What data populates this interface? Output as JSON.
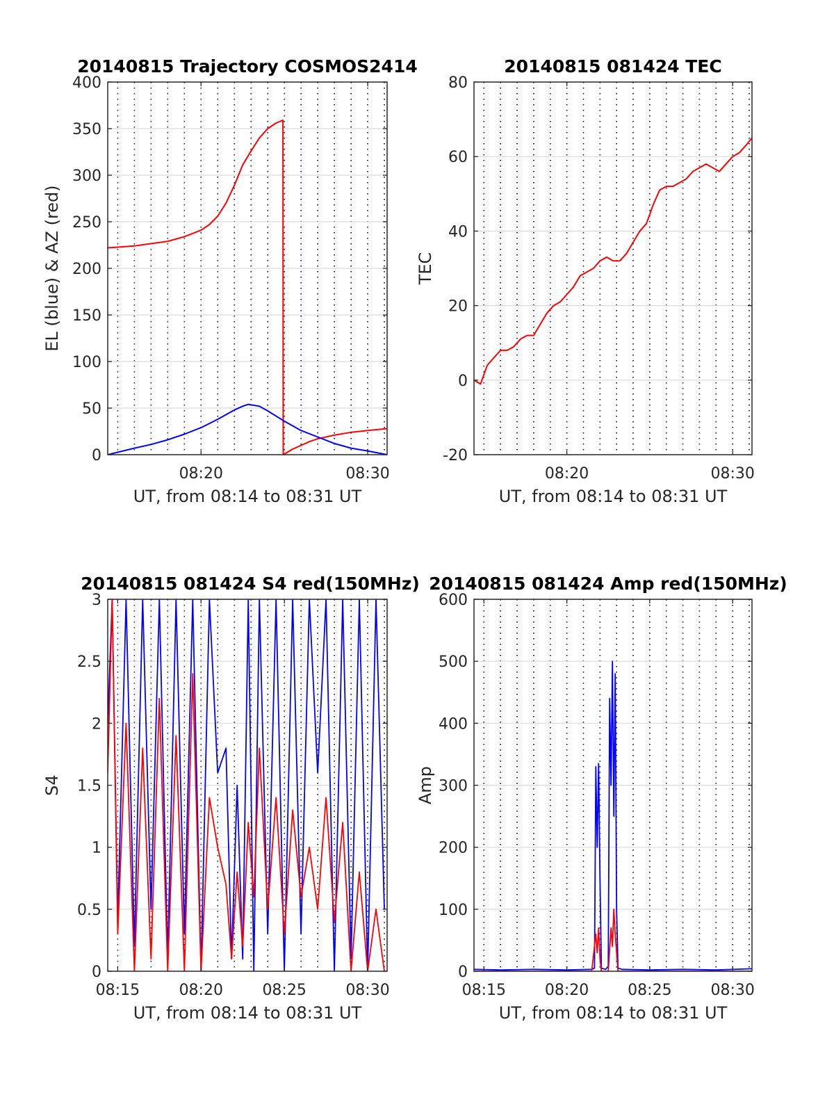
{
  "charts": [
    {
      "id": "trajectory",
      "title": "20140815 Trajectory COSMOS2414",
      "ylabel": "EL (blue) & AZ (red)",
      "xlabel": "UT, from 08:14 to 08:31 UT",
      "ylim": [
        0,
        400
      ],
      "yticks": [
        "0",
        "50",
        "100",
        "150",
        "200",
        "250",
        "300",
        "350",
        "400"
      ],
      "xticks": [
        "08:20",
        "08:30"
      ]
    },
    {
      "id": "tec",
      "title": "20140815 081424 TEC",
      "ylabel": "TEC",
      "xlabel": "UT, from 08:14 to 08:31 UT",
      "ylim": [
        -20,
        80
      ],
      "yticks": [
        "-20",
        "0",
        "20",
        "40",
        "60",
        "80"
      ],
      "xticks": [
        "08:20",
        "08:30"
      ]
    },
    {
      "id": "s4",
      "title": "20140815 081424 S4 red(150MHz)",
      "ylabel": "S4",
      "xlabel": "UT, from 08:14 to 08:31 UT",
      "ylim": [
        0,
        3
      ],
      "yticks": [
        "0",
        "0.5",
        "1",
        "1.5",
        "2",
        "2.5",
        "3"
      ],
      "xticks": [
        "08:15",
        "08:20",
        "08:25",
        "08:30"
      ]
    },
    {
      "id": "amp",
      "title": "20140815 081424 Amp red(150MHz)",
      "ylabel": "Amp",
      "xlabel": "UT, from 08:14 to 08:31 UT",
      "ylim": [
        0,
        600
      ],
      "yticks": [
        "0",
        "100",
        "200",
        "300",
        "400",
        "500",
        "600"
      ],
      "xticks": [
        "08:15",
        "08:20",
        "08:25",
        "08:30"
      ]
    }
  ],
  "chart_data": [
    {
      "type": "line",
      "title": "20140815 Trajectory COSMOS2414",
      "xlabel": "UT, from 08:14 to 08:31 UT",
      "ylabel": "EL (blue) & AZ (red)",
      "xlim": [
        "08:14:24",
        "08:31:10"
      ],
      "ylim": [
        0,
        400
      ],
      "grid": true,
      "series": [
        {
          "color": "#ff0000",
          "x": [
            "08:14:24",
            "08:16:00",
            "08:18:00",
            "08:19:00",
            "08:20:00",
            "08:20:30",
            "08:21:00",
            "08:21:30",
            "08:22:00",
            "08:22:30",
            "08:23:00",
            "08:23:30",
            "08:24:00",
            "08:24:30",
            "08:24:55",
            "08:24:56",
            "08:25:30",
            "08:26:00",
            "08:26:30",
            "08:27:00",
            "08:28:00",
            "08:29:00",
            "08:30:00",
            "08:31:10"
          ],
          "values": [
            222,
            224,
            229,
            234,
            241,
            247,
            256,
            270,
            289,
            311,
            326,
            340,
            350,
            356,
            359,
            0,
            6,
            10,
            14,
            17,
            21,
            24,
            26,
            28
          ]
        },
        {
          "color": "#0000ff",
          "x": [
            "08:14:24",
            "08:16:00",
            "08:17:00",
            "08:18:00",
            "08:19:00",
            "08:20:00",
            "08:21:00",
            "08:22:00",
            "08:22:30",
            "08:22:50",
            "08:23:30",
            "08:24:00",
            "08:25:00",
            "08:26:00",
            "08:27:00",
            "08:28:00",
            "08:29:00",
            "08:30:00",
            "08:31:10"
          ],
          "values": [
            0,
            7,
            11,
            16,
            22,
            29,
            38,
            48,
            52,
            54,
            52,
            47,
            36,
            26,
            19,
            12,
            7,
            4,
            0
          ]
        }
      ]
    },
    {
      "type": "line",
      "title": "20140815 081424 TEC",
      "xlabel": "UT, from 08:14 to 08:31 UT",
      "ylabel": "TEC",
      "xlim": [
        "08:14:24",
        "08:31:10"
      ],
      "ylim": [
        -20,
        80
      ],
      "grid": true,
      "series": [
        {
          "color": "#ff0000",
          "x": [
            "08:14:24",
            "08:14:48",
            "08:15:12",
            "08:15:36",
            "08:16:00",
            "08:16:24",
            "08:16:48",
            "08:17:12",
            "08:17:36",
            "08:18:00",
            "08:18:24",
            "08:18:48",
            "08:19:12",
            "08:19:36",
            "08:20:00",
            "08:20:24",
            "08:20:48",
            "08:21:12",
            "08:21:36",
            "08:22:00",
            "08:22:24",
            "08:22:48",
            "08:23:12",
            "08:23:36",
            "08:24:00",
            "08:24:24",
            "08:24:48",
            "08:25:12",
            "08:25:36",
            "08:26:00",
            "08:26:24",
            "08:26:48",
            "08:27:12",
            "08:27:36",
            "08:28:00",
            "08:28:24",
            "08:28:48",
            "08:29:12",
            "08:29:36",
            "08:30:00",
            "08:30:24",
            "08:30:48",
            "08:31:10"
          ],
          "values": [
            0,
            -1,
            4,
            6,
            8,
            8,
            9,
            11,
            12,
            12,
            15,
            18,
            20,
            21,
            23,
            25,
            28,
            29,
            30,
            32,
            33,
            32,
            32,
            34,
            37,
            40,
            42,
            47,
            51,
            52,
            52,
            53,
            54,
            56,
            57,
            58,
            57,
            56,
            58,
            60,
            61,
            63,
            65
          ]
        }
      ]
    },
    {
      "type": "line",
      "title": "20140815 081424 S4 red(150MHz)",
      "xlabel": "UT, from 08:14 to 08:31 UT",
      "ylabel": "S4",
      "xlim": [
        "08:14:24",
        "08:31:10"
      ],
      "ylim": [
        0,
        3
      ],
      "grid": true,
      "series": [
        {
          "color": "#0000ff",
          "x": [
            "08:14:24",
            "08:14:40",
            "08:15:00",
            "08:15:30",
            "08:16:00",
            "08:16:30",
            "08:17:00",
            "08:17:30",
            "08:18:00",
            "08:18:30",
            "08:19:00",
            "08:19:30",
            "08:20:00",
            "08:20:30",
            "08:21:00",
            "08:21:30",
            "08:21:50",
            "08:22:10",
            "08:22:30",
            "08:22:50",
            "08:23:10",
            "08:23:30",
            "08:24:00",
            "08:24:30",
            "08:25:00",
            "08:25:30",
            "08:26:00",
            "08:26:30",
            "08:27:00",
            "08:27:30",
            "08:28:00",
            "08:28:30",
            "08:29:00",
            "08:29:30",
            "08:30:00",
            "08:30:30",
            "08:31:00"
          ],
          "values": [
            2.0,
            3.0,
            0.4,
            3.0,
            0.2,
            3.0,
            0.5,
            3.0,
            0.1,
            3.0,
            0.3,
            3.0,
            0.0,
            3.0,
            1.6,
            1.8,
            0.1,
            1.5,
            0.1,
            3.0,
            0.0,
            3.0,
            0.3,
            3.0,
            0.0,
            3.0,
            0.3,
            3.0,
            1.6,
            3.0,
            0.0,
            3.0,
            0.1,
            3.0,
            0.0,
            3.0,
            0.5
          ]
        },
        {
          "color": "#ff0000",
          "x": [
            "08:14:24",
            "08:14:40",
            "08:15:00",
            "08:15:30",
            "08:16:00",
            "08:16:30",
            "08:17:00",
            "08:17:30",
            "08:18:00",
            "08:18:30",
            "08:19:00",
            "08:19:30",
            "08:20:00",
            "08:20:30",
            "08:21:00",
            "08:21:30",
            "08:21:50",
            "08:22:10",
            "08:22:30",
            "08:22:50",
            "08:23:10",
            "08:23:30",
            "08:24:00",
            "08:24:30",
            "08:25:00",
            "08:25:30",
            "08:26:00",
            "08:26:30",
            "08:27:00",
            "08:27:30",
            "08:28:00",
            "08:28:30",
            "08:29:00",
            "08:29:30",
            "08:30:00",
            "08:30:30",
            "08:31:00"
          ],
          "values": [
            1.6,
            3.0,
            0.3,
            2.0,
            0.0,
            1.8,
            0.1,
            2.2,
            0.0,
            1.9,
            0.0,
            2.4,
            0.0,
            1.4,
            1.0,
            0.7,
            0.1,
            0.8,
            0.2,
            1.2,
            0.6,
            1.8,
            0.5,
            1.4,
            0.3,
            1.3,
            0.6,
            1.0,
            0.5,
            1.4,
            0.4,
            1.2,
            0.0,
            0.8,
            0.0,
            0.5,
            0.0
          ]
        }
      ]
    },
    {
      "type": "line",
      "title": "20140815 081424 Amp red(150MHz)",
      "xlabel": "UT, from 08:14 to 08:31 UT",
      "ylabel": "Amp",
      "xlim": [
        "08:14:24",
        "08:31:10"
      ],
      "ylim": [
        0,
        600
      ],
      "grid": true,
      "series": [
        {
          "color": "#0000ff",
          "x": [
            "08:14:24",
            "08:16:00",
            "08:18:00",
            "08:20:00",
            "08:21:30",
            "08:21:40",
            "08:21:45",
            "08:21:50",
            "08:21:55",
            "08:22:00",
            "08:22:05",
            "08:22:20",
            "08:22:30",
            "08:22:35",
            "08:22:40",
            "08:22:45",
            "08:22:50",
            "08:22:55",
            "08:23:00",
            "08:23:05",
            "08:23:20",
            "08:25:00",
            "08:27:00",
            "08:29:00",
            "08:31:10"
          ],
          "values": [
            3,
            2,
            3,
            2,
            3,
            5,
            330,
            200,
            335,
            150,
            5,
            3,
            8,
            440,
            300,
            500,
            250,
            480,
            100,
            5,
            3,
            2,
            3,
            2,
            4
          ]
        },
        {
          "color": "#ff0000",
          "x": [
            "08:14:24",
            "08:21:30",
            "08:21:45",
            "08:21:50",
            "08:21:55",
            "08:22:00",
            "08:22:05",
            "08:22:30",
            "08:22:40",
            "08:22:45",
            "08:22:50",
            "08:22:55",
            "08:23:05",
            "08:31:10"
          ],
          "values": [
            0,
            0,
            60,
            30,
            70,
            20,
            0,
            0,
            70,
            40,
            100,
            60,
            0,
            0
          ]
        }
      ]
    }
  ]
}
